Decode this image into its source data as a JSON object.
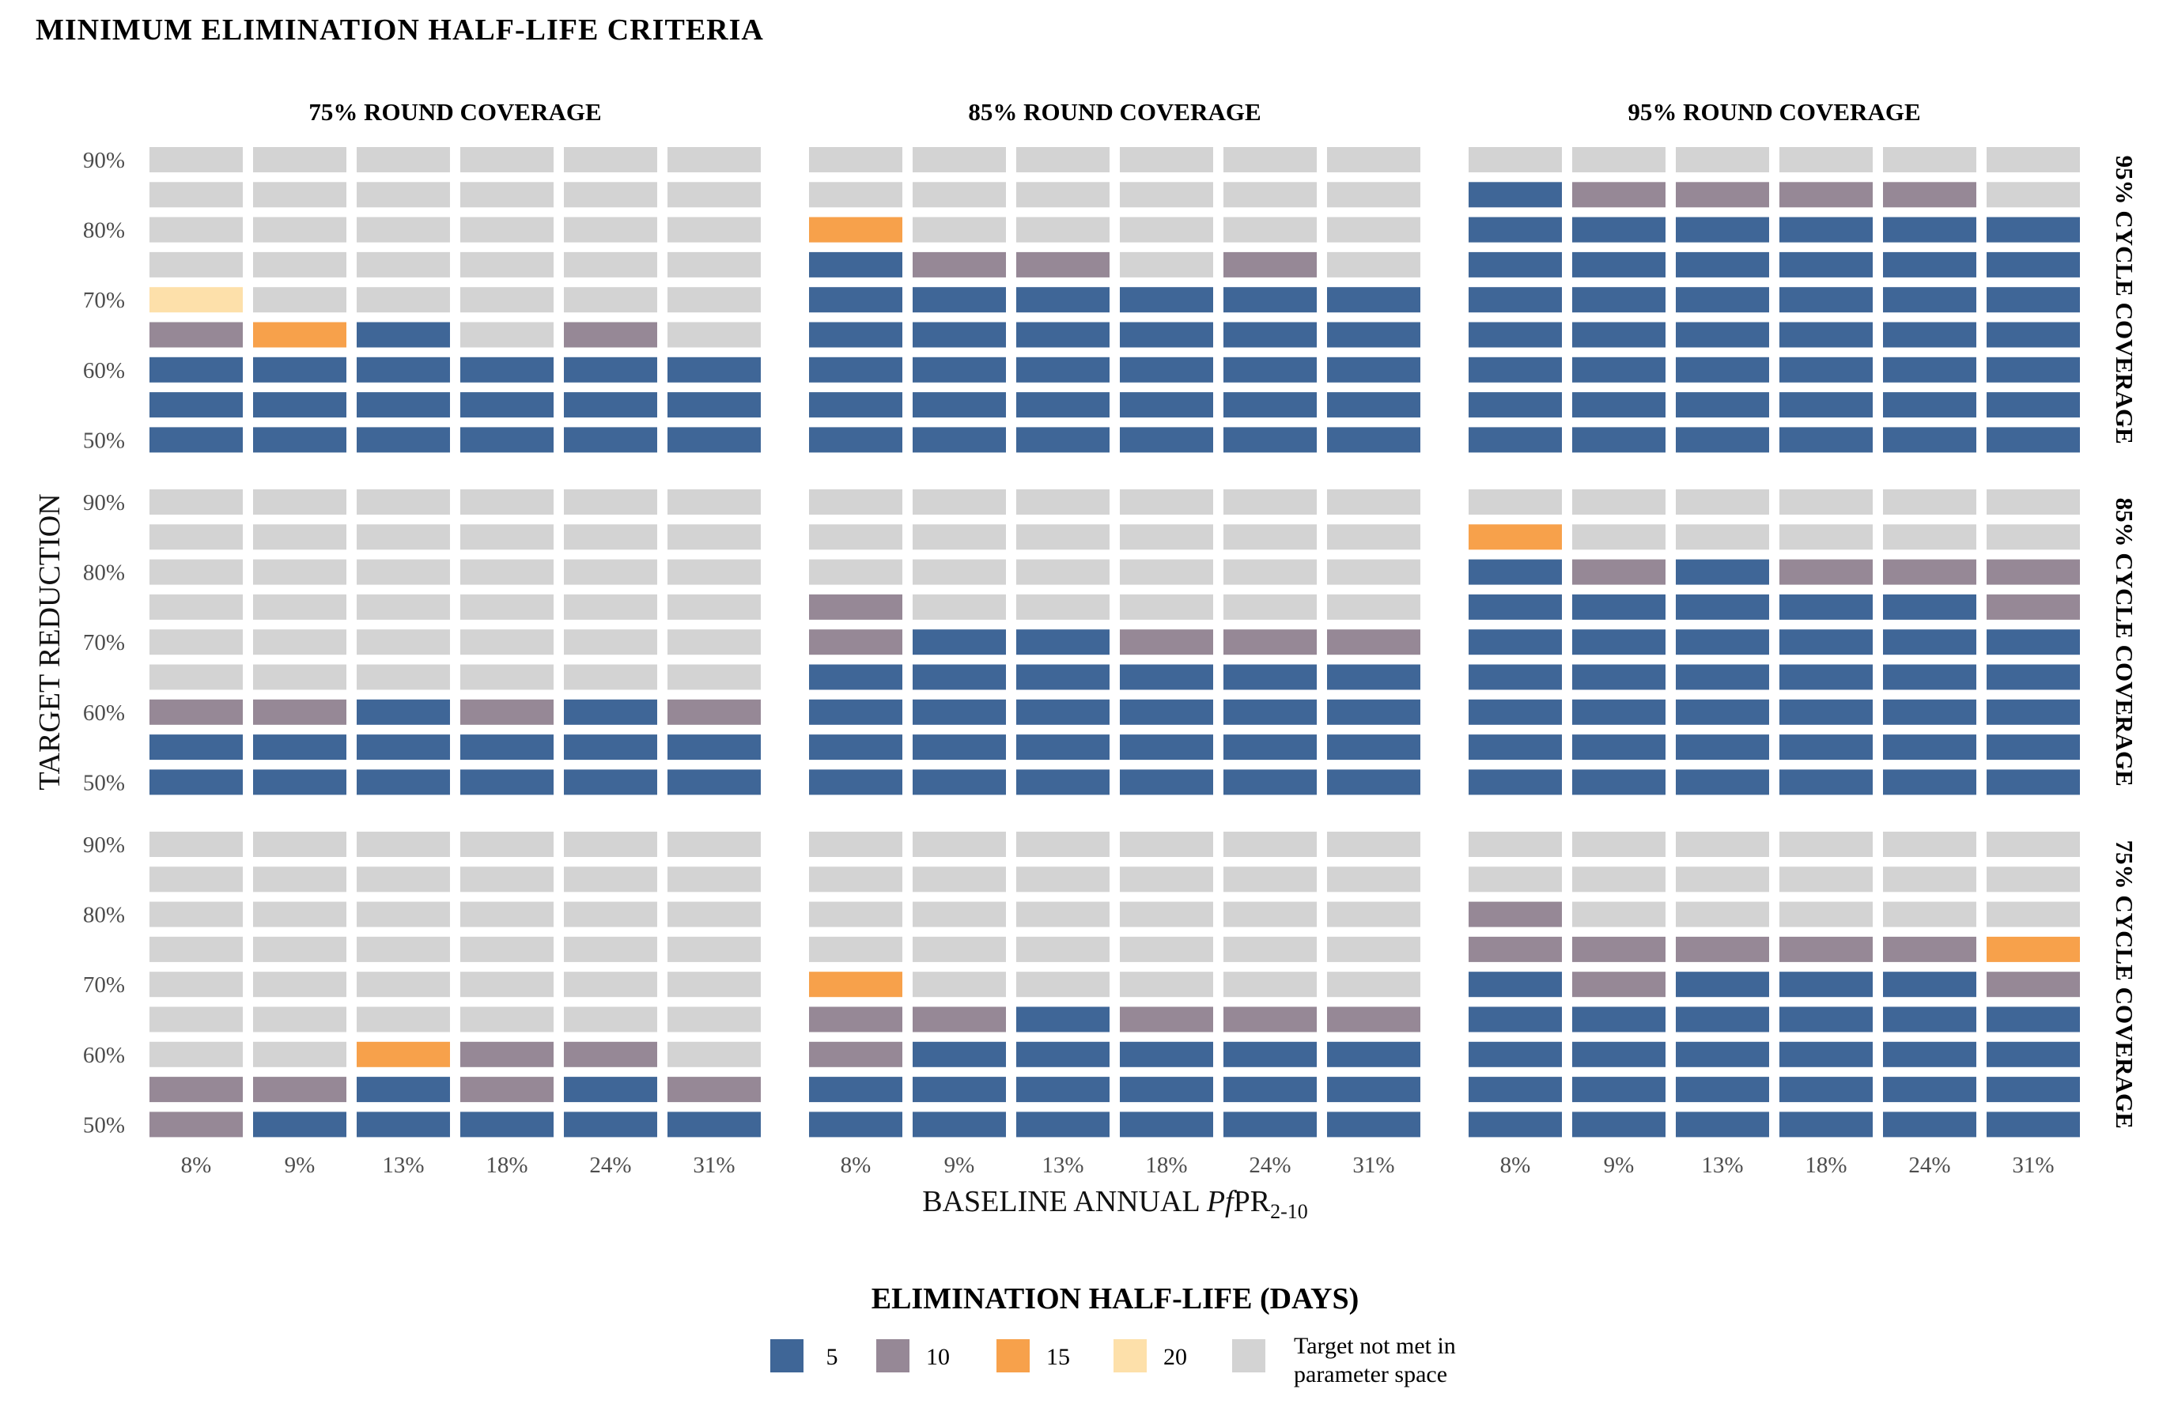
{
  "chart_data": {
    "type": "heatmap",
    "title": "MINIMUM ELIMINATION HALF-LIFE CRITERIA",
    "xlabel": "BASELINE ANNUAL PfPR2-10",
    "xlabel_parts": {
      "pre": "BASELINE ANNUAL ",
      "italic": "Pf",
      "main": "PR",
      "sub": "2-10"
    },
    "ylabel": "TARGET REDUCTION",
    "x_categories": [
      "8%",
      "9%",
      "13%",
      "18%",
      "24%",
      "31%"
    ],
    "y_categories": [
      "50%",
      "55%",
      "60%",
      "65%",
      "70%",
      "75%",
      "80%",
      "85%",
      "90%"
    ],
    "y_tick_labels": [
      "50%",
      "",
      "60%",
      "",
      "70%",
      "",
      "80%",
      "",
      "90%"
    ],
    "column_facets": [
      "75% ROUND COVERAGE",
      "85% ROUND COVERAGE",
      "95% ROUND COVERAGE"
    ],
    "row_facets": [
      "95% CYCLE COVERAGE",
      "85% CYCLE COVERAGE",
      "75% CYCLE COVERAGE"
    ],
    "legend": {
      "title": "ELIMINATION HALF-LIFE (DAYS)",
      "position": "bottom",
      "items": [
        {
          "key": "5",
          "label": "5",
          "color": "#3f6697"
        },
        {
          "key": "10",
          "label": "10",
          "color": "#968896"
        },
        {
          "key": "15",
          "label": "15",
          "color": "#f7a14b"
        },
        {
          "key": "20",
          "label": "20",
          "color": "#fde0aa"
        },
        {
          "key": "NM",
          "label_line1": "Target not met in",
          "label_line2": "parameter space",
          "color": "#d3d3d3"
        }
      ]
    },
    "grid": false,
    "panels": [
      {
        "row_facet": "95% CYCLE COVERAGE",
        "col_facet": "75% ROUND COVERAGE",
        "values_by_x": [
          [
            "5",
            "5",
            "5",
            "10",
            "20",
            "NM",
            "NM",
            "NM",
            "NM"
          ],
          [
            "5",
            "5",
            "5",
            "15",
            "NM",
            "NM",
            "NM",
            "NM",
            "NM"
          ],
          [
            "5",
            "5",
            "5",
            "5",
            "NM",
            "NM",
            "NM",
            "NM",
            "NM"
          ],
          [
            "5",
            "5",
            "5",
            "NM",
            "NM",
            "NM",
            "NM",
            "NM",
            "NM"
          ],
          [
            "5",
            "5",
            "5",
            "10",
            "NM",
            "NM",
            "NM",
            "NM",
            "NM"
          ],
          [
            "5",
            "5",
            "5",
            "NM",
            "NM",
            "NM",
            "NM",
            "NM",
            "NM"
          ]
        ]
      },
      {
        "row_facet": "95% CYCLE COVERAGE",
        "col_facet": "85% ROUND COVERAGE",
        "values_by_x": [
          [
            "5",
            "5",
            "5",
            "5",
            "5",
            "5",
            "15",
            "NM",
            "NM"
          ],
          [
            "5",
            "5",
            "5",
            "5",
            "5",
            "10",
            "NM",
            "NM",
            "NM"
          ],
          [
            "5",
            "5",
            "5",
            "5",
            "5",
            "10",
            "NM",
            "NM",
            "NM"
          ],
          [
            "5",
            "5",
            "5",
            "5",
            "5",
            "NM",
            "NM",
            "NM",
            "NM"
          ],
          [
            "5",
            "5",
            "5",
            "5",
            "5",
            "10",
            "NM",
            "NM",
            "NM"
          ],
          [
            "5",
            "5",
            "5",
            "5",
            "5",
            "NM",
            "NM",
            "NM",
            "NM"
          ]
        ]
      },
      {
        "row_facet": "95% CYCLE COVERAGE",
        "col_facet": "95% ROUND COVERAGE",
        "values_by_x": [
          [
            "5",
            "5",
            "5",
            "5",
            "5",
            "5",
            "5",
            "5",
            "NM"
          ],
          [
            "5",
            "5",
            "5",
            "5",
            "5",
            "5",
            "5",
            "10",
            "NM"
          ],
          [
            "5",
            "5",
            "5",
            "5",
            "5",
            "5",
            "5",
            "10",
            "NM"
          ],
          [
            "5",
            "5",
            "5",
            "5",
            "5",
            "5",
            "5",
            "10",
            "NM"
          ],
          [
            "5",
            "5",
            "5",
            "5",
            "5",
            "5",
            "5",
            "10",
            "NM"
          ],
          [
            "5",
            "5",
            "5",
            "5",
            "5",
            "5",
            "5",
            "NM",
            "NM"
          ]
        ]
      },
      {
        "row_facet": "85% CYCLE COVERAGE",
        "col_facet": "75% ROUND COVERAGE",
        "values_by_x": [
          [
            "5",
            "5",
            "10",
            "NM",
            "NM",
            "NM",
            "NM",
            "NM",
            "NM"
          ],
          [
            "5",
            "5",
            "10",
            "NM",
            "NM",
            "NM",
            "NM",
            "NM",
            "NM"
          ],
          [
            "5",
            "5",
            "5",
            "NM",
            "NM",
            "NM",
            "NM",
            "NM",
            "NM"
          ],
          [
            "5",
            "5",
            "10",
            "NM",
            "NM",
            "NM",
            "NM",
            "NM",
            "NM"
          ],
          [
            "5",
            "5",
            "5",
            "NM",
            "NM",
            "NM",
            "NM",
            "NM",
            "NM"
          ],
          [
            "5",
            "5",
            "10",
            "NM",
            "NM",
            "NM",
            "NM",
            "NM",
            "NM"
          ]
        ]
      },
      {
        "row_facet": "85% CYCLE COVERAGE",
        "col_facet": "85% ROUND COVERAGE",
        "values_by_x": [
          [
            "5",
            "5",
            "5",
            "5",
            "10",
            "10",
            "NM",
            "NM",
            "NM"
          ],
          [
            "5",
            "5",
            "5",
            "5",
            "5",
            "NM",
            "NM",
            "NM",
            "NM"
          ],
          [
            "5",
            "5",
            "5",
            "5",
            "5",
            "NM",
            "NM",
            "NM",
            "NM"
          ],
          [
            "5",
            "5",
            "5",
            "5",
            "10",
            "NM",
            "NM",
            "NM",
            "NM"
          ],
          [
            "5",
            "5",
            "5",
            "5",
            "10",
            "NM",
            "NM",
            "NM",
            "NM"
          ],
          [
            "5",
            "5",
            "5",
            "5",
            "10",
            "NM",
            "NM",
            "NM",
            "NM"
          ]
        ]
      },
      {
        "row_facet": "85% CYCLE COVERAGE",
        "col_facet": "95% ROUND COVERAGE",
        "values_by_x": [
          [
            "5",
            "5",
            "5",
            "5",
            "5",
            "5",
            "5",
            "15",
            "NM"
          ],
          [
            "5",
            "5",
            "5",
            "5",
            "5",
            "5",
            "10",
            "NM",
            "NM"
          ],
          [
            "5",
            "5",
            "5",
            "5",
            "5",
            "5",
            "5",
            "NM",
            "NM"
          ],
          [
            "5",
            "5",
            "5",
            "5",
            "5",
            "5",
            "10",
            "NM",
            "NM"
          ],
          [
            "5",
            "5",
            "5",
            "5",
            "5",
            "5",
            "10",
            "NM",
            "NM"
          ],
          [
            "5",
            "5",
            "5",
            "5",
            "5",
            "10",
            "10",
            "NM",
            "NM"
          ]
        ]
      },
      {
        "row_facet": "75% CYCLE COVERAGE",
        "col_facet": "75% ROUND COVERAGE",
        "values_by_x": [
          [
            "10",
            "10",
            "NM",
            "NM",
            "NM",
            "NM",
            "NM",
            "NM",
            "NM"
          ],
          [
            "5",
            "10",
            "NM",
            "NM",
            "NM",
            "NM",
            "NM",
            "NM",
            "NM"
          ],
          [
            "5",
            "5",
            "15",
            "NM",
            "NM",
            "NM",
            "NM",
            "NM",
            "NM"
          ],
          [
            "5",
            "10",
            "10",
            "NM",
            "NM",
            "NM",
            "NM",
            "NM",
            "NM"
          ],
          [
            "5",
            "5",
            "10",
            "NM",
            "NM",
            "NM",
            "NM",
            "NM",
            "NM"
          ],
          [
            "5",
            "10",
            "NM",
            "NM",
            "NM",
            "NM",
            "NM",
            "NM",
            "NM"
          ]
        ]
      },
      {
        "row_facet": "75% CYCLE COVERAGE",
        "col_facet": "85% ROUND COVERAGE",
        "values_by_x": [
          [
            "5",
            "5",
            "10",
            "10",
            "15",
            "NM",
            "NM",
            "NM",
            "NM"
          ],
          [
            "5",
            "5",
            "5",
            "10",
            "NM",
            "NM",
            "NM",
            "NM",
            "NM"
          ],
          [
            "5",
            "5",
            "5",
            "5",
            "NM",
            "NM",
            "NM",
            "NM",
            "NM"
          ],
          [
            "5",
            "5",
            "5",
            "10",
            "NM",
            "NM",
            "NM",
            "NM",
            "NM"
          ],
          [
            "5",
            "5",
            "5",
            "10",
            "NM",
            "NM",
            "NM",
            "NM",
            "NM"
          ],
          [
            "5",
            "5",
            "5",
            "10",
            "NM",
            "NM",
            "NM",
            "NM",
            "NM"
          ]
        ]
      },
      {
        "row_facet": "75% CYCLE COVERAGE",
        "col_facet": "95% ROUND COVERAGE",
        "values_by_x": [
          [
            "5",
            "5",
            "5",
            "5",
            "5",
            "10",
            "10",
            "NM",
            "NM"
          ],
          [
            "5",
            "5",
            "5",
            "5",
            "10",
            "10",
            "NM",
            "NM",
            "NM"
          ],
          [
            "5",
            "5",
            "5",
            "5",
            "5",
            "10",
            "NM",
            "NM",
            "NM"
          ],
          [
            "5",
            "5",
            "5",
            "5",
            "5",
            "10",
            "NM",
            "NM",
            "NM"
          ],
          [
            "5",
            "5",
            "5",
            "5",
            "5",
            "10",
            "NM",
            "NM",
            "NM"
          ],
          [
            "5",
            "5",
            "5",
            "5",
            "10",
            "15",
            "NM",
            "NM",
            "NM"
          ]
        ]
      }
    ]
  }
}
